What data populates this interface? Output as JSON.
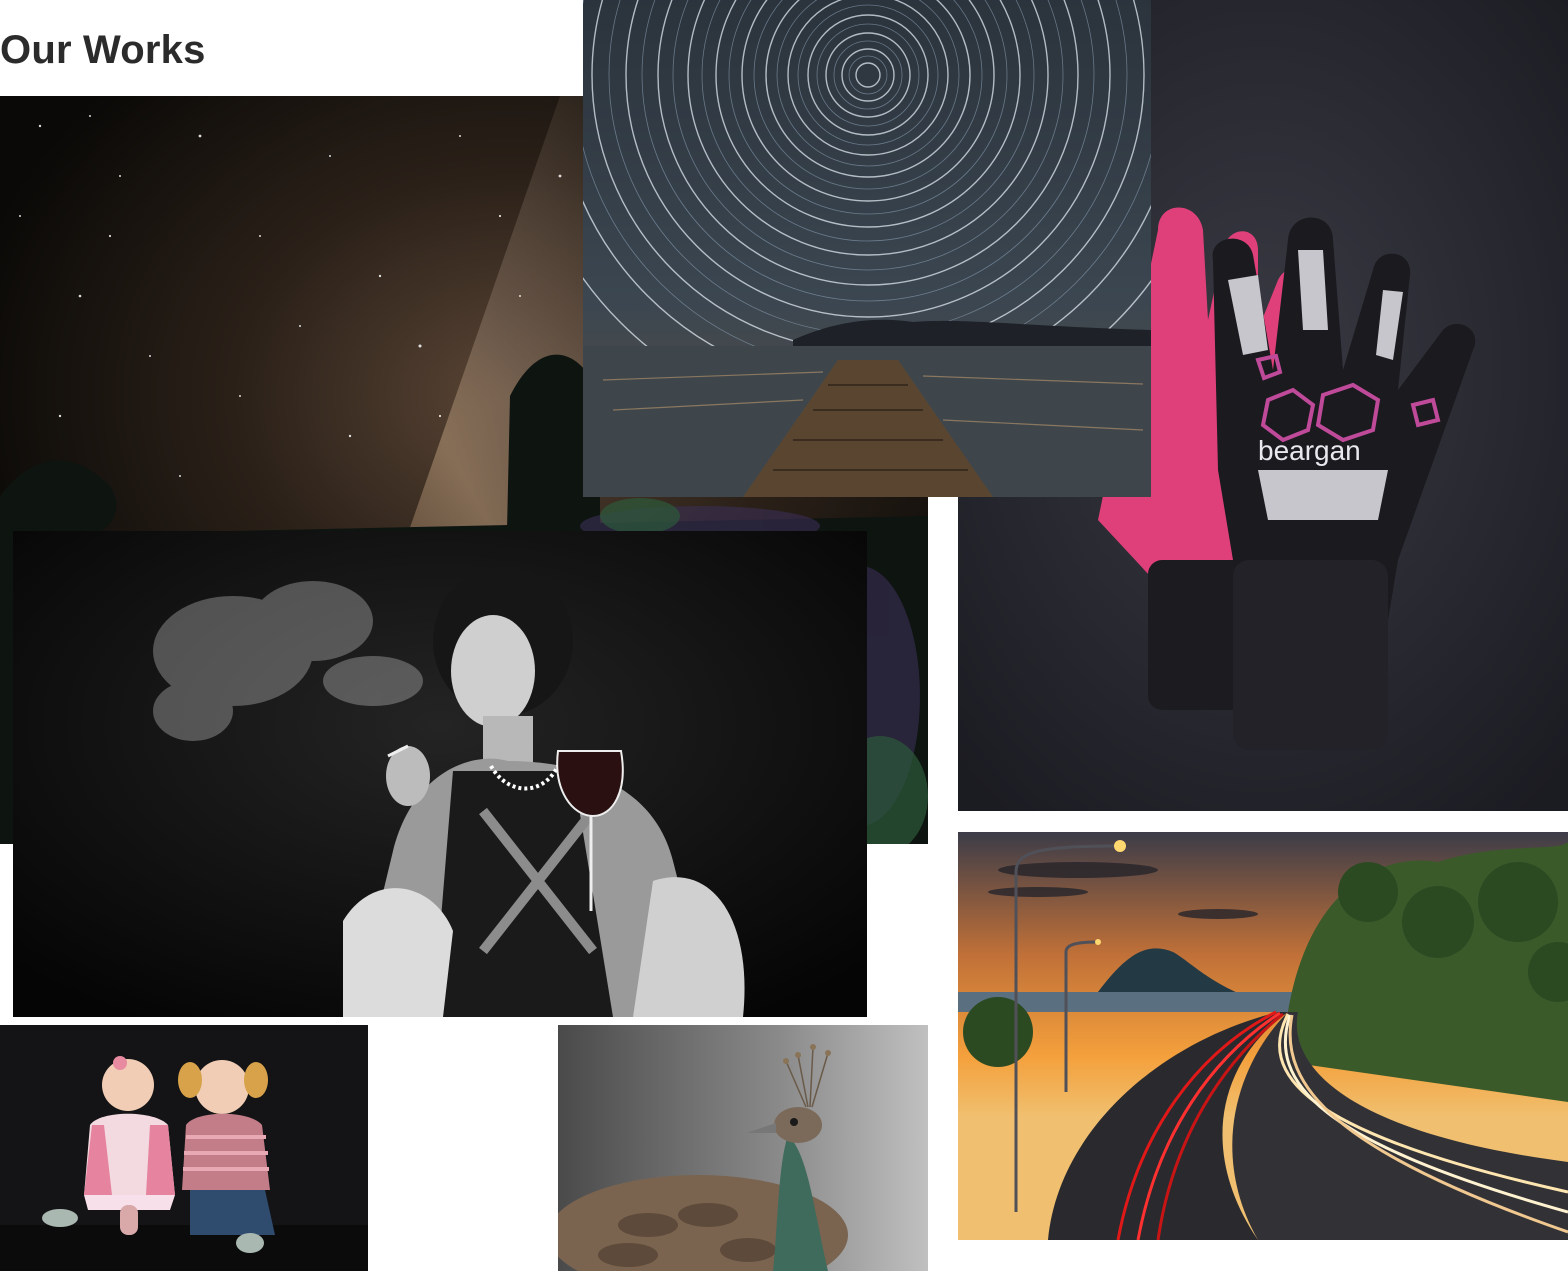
{
  "section": {
    "title": "Our Works"
  },
  "gallery": {
    "items": [
      {
        "subject": "Milky Way night sky over bush"
      },
      {
        "subject": "Star trails over lake and jetty"
      },
      {
        "subject": "Pink and black goalkeeper gloves"
      },
      {
        "subject": "Black and white portrait of woman with wine and smoke"
      },
      {
        "subject": "Two toddlers in knitted sweaters"
      },
      {
        "subject": "Peahen portrait"
      },
      {
        "subject": "Light trails on highway at sunset"
      }
    ],
    "glove_brand": "beargan"
  },
  "colors": {
    "title": "#2b2b2b",
    "background": "#ffffff",
    "glove_pink": "#e0407a"
  }
}
